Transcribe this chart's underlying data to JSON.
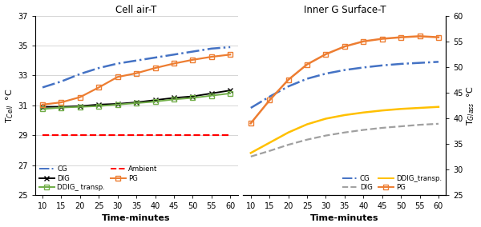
{
  "time": [
    10,
    15,
    20,
    25,
    30,
    35,
    40,
    45,
    50,
    55,
    60
  ],
  "left_title": "Cell air-T",
  "right_title": "Inner G Surface-T",
  "left_ylabel": "T$_{Cell}$  °C",
  "right_ylabel": "T$_{Glass}$  °C",
  "xlabel": "Time-minutes",
  "left_ylim": [
    25,
    37
  ],
  "right_ylim": [
    25,
    60
  ],
  "left_yticks": [
    25,
    27,
    29,
    31,
    33,
    35,
    37
  ],
  "right_yticks": [
    25,
    30,
    35,
    40,
    45,
    50,
    55,
    60
  ],
  "left_series": {
    "CG": {
      "values": [
        32.2,
        32.6,
        33.1,
        33.5,
        33.8,
        34.0,
        34.2,
        34.4,
        34.6,
        34.8,
        34.9
      ],
      "color": "#4472C4",
      "linestyle": "dashdot",
      "marker": null,
      "linewidth": 1.8
    },
    "DIG": {
      "values": [
        30.9,
        30.9,
        30.95,
        31.05,
        31.1,
        31.2,
        31.35,
        31.5,
        31.6,
        31.8,
        32.0
      ],
      "color": "#000000",
      "linestyle": "solid",
      "marker": "x",
      "markersize": 5,
      "linewidth": 1.4
    },
    "DDIG_transp": {
      "values": [
        30.75,
        30.85,
        30.9,
        30.95,
        31.05,
        31.15,
        31.25,
        31.4,
        31.5,
        31.65,
        31.8
      ],
      "color": "#70AD47",
      "linestyle": "solid",
      "marker": "s",
      "markersize": 4,
      "linewidth": 1.4
    },
    "Ambient": {
      "values": [
        29.0,
        29.0,
        29.0,
        29.0,
        29.0,
        29.0,
        29.0,
        29.0,
        29.0,
        29.0,
        29.0
      ],
      "color": "#FF0000",
      "linestyle": "dashed",
      "marker": null,
      "linewidth": 1.6
    },
    "PG": {
      "values": [
        31.05,
        31.2,
        31.55,
        32.2,
        32.9,
        33.15,
        33.5,
        33.8,
        34.05,
        34.25,
        34.4
      ],
      "color": "#ED7D31",
      "linestyle": "solid",
      "marker": "s",
      "markersize": 4,
      "linewidth": 1.6
    }
  },
  "right_series": {
    "CG": {
      "values": [
        42.0,
        44.2,
        46.2,
        47.7,
        48.7,
        49.4,
        49.9,
        50.3,
        50.6,
        50.8,
        51.0
      ],
      "color": "#4472C4",
      "linestyle": "dashdot",
      "marker": null,
      "linewidth": 1.8
    },
    "DIG": {
      "values": [
        32.5,
        33.6,
        34.8,
        35.8,
        36.6,
        37.2,
        37.7,
        38.1,
        38.4,
        38.7,
        38.9
      ],
      "color": "#A0A0A0",
      "linestyle": "dashed",
      "marker": null,
      "linewidth": 1.6
    },
    "DDIG_transp": {
      "values": [
        33.2,
        35.2,
        37.2,
        38.8,
        39.9,
        40.6,
        41.1,
        41.5,
        41.8,
        42.0,
        42.2
      ],
      "color": "#FFC000",
      "linestyle": "solid",
      "marker": null,
      "linewidth": 1.8
    },
    "PG": {
      "values": [
        39.0,
        43.5,
        47.5,
        50.5,
        52.5,
        54.0,
        55.0,
        55.5,
        55.8,
        56.0,
        55.8
      ],
      "color": "#ED7D31",
      "linestyle": "solid",
      "marker": "s",
      "markersize": 4,
      "linewidth": 1.8
    }
  },
  "left_legend": [
    {
      "label": "CG",
      "color": "#4472C4",
      "linestyle": "dashdot",
      "marker": null
    },
    {
      "label": "DIG",
      "color": "#000000",
      "linestyle": "solid",
      "marker": "x"
    },
    {
      "label": "DDIG_ transp.",
      "color": "#70AD47",
      "linestyle": "solid",
      "marker": "s"
    },
    {
      "label": "Ambient",
      "color": "#FF0000",
      "linestyle": "dashed",
      "marker": null
    },
    {
      "label": "PG",
      "color": "#ED7D31",
      "linestyle": "solid",
      "marker": "s"
    }
  ],
  "right_legend": [
    {
      "label": "CG",
      "color": "#4472C4",
      "linestyle": "dashdot",
      "marker": null
    },
    {
      "label": "DIG",
      "color": "#A0A0A0",
      "linestyle": "dashed",
      "marker": null
    },
    {
      "label": "DDIG_transp.",
      "color": "#FFC000",
      "linestyle": "solid",
      "marker": null
    },
    {
      "label": "PG",
      "color": "#ED7D31",
      "linestyle": "solid",
      "marker": "s"
    }
  ],
  "bg_color": "#FFFFFF",
  "grid_color": "#D0D0D0",
  "xticks": [
    10,
    15,
    20,
    25,
    30,
    35,
    40,
    45,
    50,
    55,
    60
  ]
}
